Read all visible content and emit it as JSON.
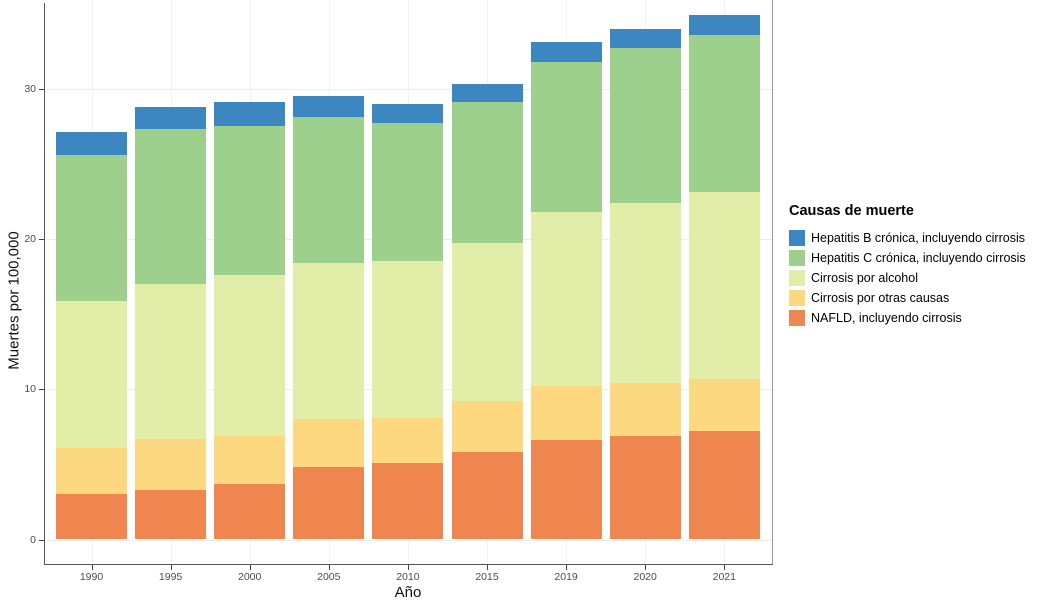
{
  "chart_data": {
    "type": "bar",
    "stacked": true,
    "categories": [
      "1990",
      "1995",
      "2000",
      "2005",
      "2010",
      "2015",
      "2019",
      "2020",
      "2021"
    ],
    "series": [
      {
        "name": "NAFLD, incluyendo cirrosis",
        "color": "#f0864f",
        "values": [
          3.0,
          3.3,
          3.7,
          4.8,
          5.1,
          5.8,
          6.6,
          6.9,
          7.2
        ]
      },
      {
        "name": "Cirrosis por otras causas",
        "color": "#fcd980",
        "values": [
          3.1,
          3.4,
          3.2,
          3.2,
          3.0,
          3.4,
          3.6,
          3.5,
          3.5
        ]
      },
      {
        "name": "Cirrosis por alcohol",
        "color": "#e2eda7",
        "values": [
          9.8,
          10.3,
          10.7,
          10.4,
          10.4,
          10.5,
          11.6,
          12.0,
          12.4
        ]
      },
      {
        "name": "Hepatitis C crónica, incluyendo cirrosis",
        "color": "#9dd08c",
        "values": [
          9.7,
          10.3,
          9.9,
          9.7,
          9.2,
          9.4,
          10.0,
          10.3,
          10.5
        ]
      },
      {
        "name": "Hepatitis B crónica, incluyendo cirrosis",
        "color": "#3c87bf",
        "values": [
          1.5,
          1.5,
          1.6,
          1.4,
          1.3,
          1.2,
          1.3,
          1.3,
          1.3
        ]
      }
    ],
    "totals": [
      27.1,
      28.8,
      29.1,
      29.5,
      29.0,
      30.3,
      33.1,
      34.0,
      34.9
    ],
    "title": "",
    "xlabel": "Año",
    "ylabel": "Muertes por 100,000",
    "ylim": [
      0,
      35
    ],
    "y_ticks": [
      0,
      10,
      20,
      30
    ],
    "grid": true,
    "legend_position": "right"
  },
  "legend": {
    "title": "Causas de muerte",
    "items": [
      {
        "label": "Hepatitis B crónica, incluyendo cirrosis",
        "color": "#3c87bf"
      },
      {
        "label": "Hepatitis C crónica, incluyendo cirrosis",
        "color": "#9dd08c"
      },
      {
        "label": "Cirrosis por alcohol",
        "color": "#e2eda7"
      },
      {
        "label": "Cirrosis por otras causas",
        "color": "#fcd980"
      },
      {
        "label": "NAFLD, incluyendo cirrosis",
        "color": "#f0864f"
      }
    ]
  },
  "axes": {
    "x_title": "Año",
    "y_title": "Muertes por 100,000",
    "x_tick_labels": [
      "1990",
      "1995",
      "2000",
      "2005",
      "2010",
      "2015",
      "2019",
      "2020",
      "2021"
    ],
    "y_tick_labels": [
      "0",
      "10",
      "20",
      "30"
    ]
  },
  "colors": {
    "axis_line": "#555555",
    "panel_border": "#9a9a9a",
    "gridline": "#ededed",
    "tick_label": "#4d4d4d",
    "background": "#ffffff"
  }
}
